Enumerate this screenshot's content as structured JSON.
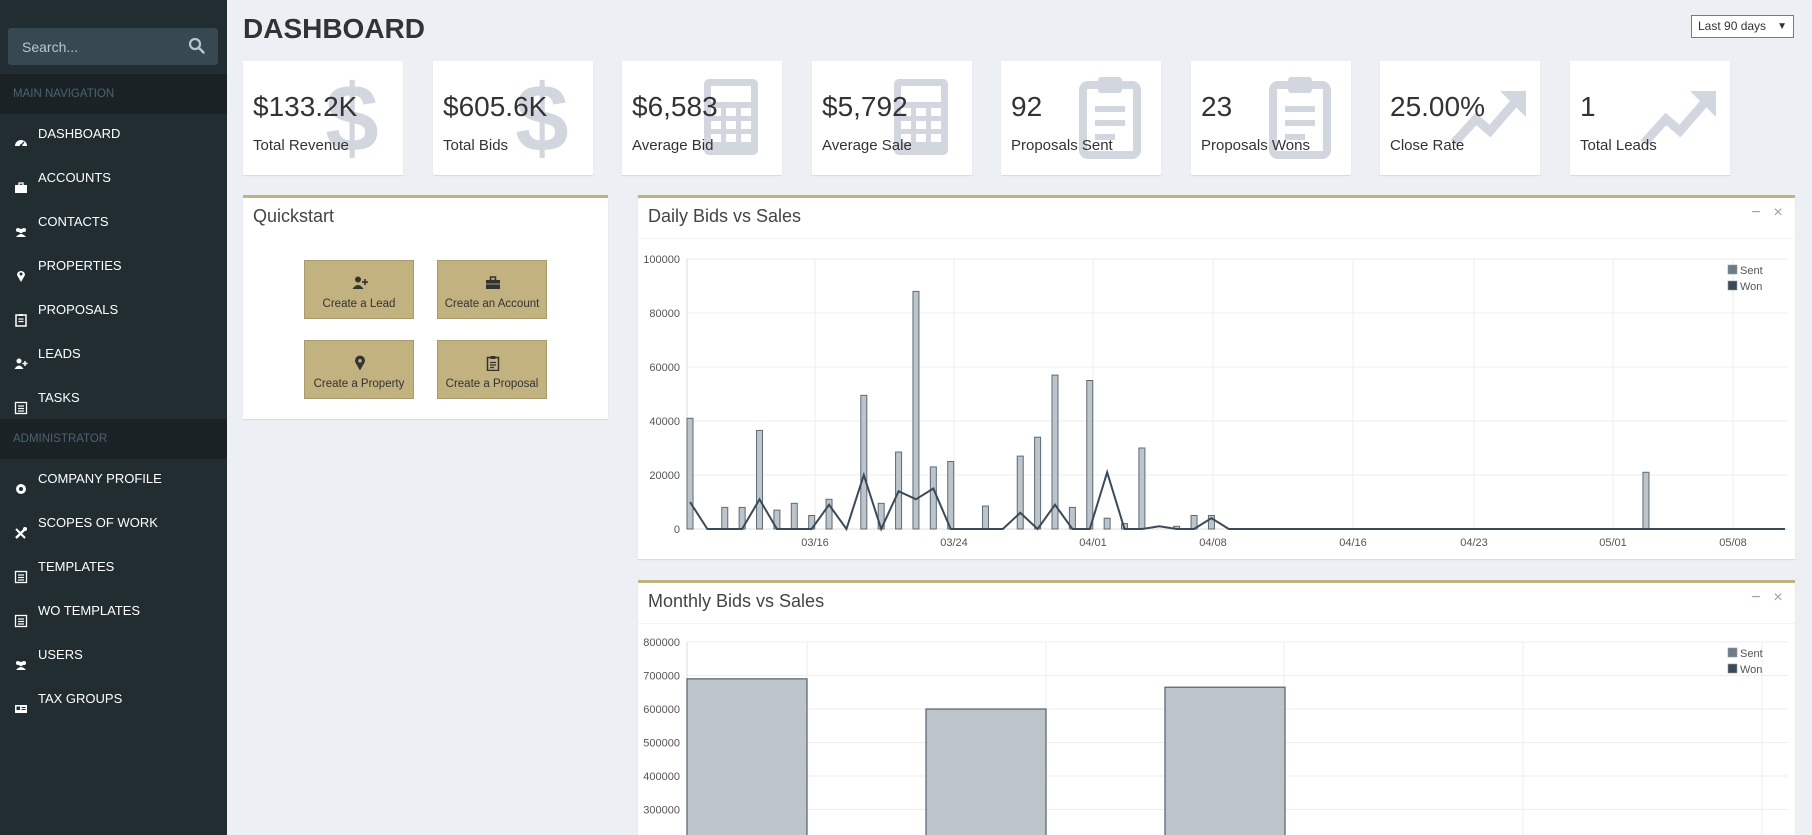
{
  "sidebar": {
    "search_placeholder": "Search...",
    "header_main": "MAIN NAVIGATION",
    "header_admin": "ADMINISTRATOR",
    "items": [
      {
        "label": "DASHBOARD",
        "icon": "dashboard-icon"
      },
      {
        "label": "ACCOUNTS",
        "icon": "briefcase-icon"
      },
      {
        "label": "CONTACTS",
        "icon": "users-icon"
      },
      {
        "label": "PROPERTIES",
        "icon": "map-marker-icon"
      },
      {
        "label": "PROPOSALS",
        "icon": "clipboard-icon"
      },
      {
        "label": "LEADS",
        "icon": "user-plus-icon"
      },
      {
        "label": "TASKS",
        "icon": "list-icon"
      },
      {
        "label": "COMPANY PROFILE",
        "icon": "cog-icon"
      },
      {
        "label": "SCOPES OF WORK",
        "icon": "tools-icon"
      },
      {
        "label": "TEMPLATES",
        "icon": "list-icon"
      },
      {
        "label": "WO TEMPLATES",
        "icon": "list-icon"
      },
      {
        "label": "USERS",
        "icon": "users-icon"
      },
      {
        "label": "TAX GROUPS",
        "icon": "id-card-icon"
      }
    ]
  },
  "header": {
    "title": "DASHBOARD",
    "range_select": "Last 90 days"
  },
  "kpis": [
    {
      "value": "$133.2K",
      "label": "Total Revenue",
      "icon": "dollar-icon"
    },
    {
      "value": "$605.6K",
      "label": "Total Bids",
      "icon": "dollar-icon"
    },
    {
      "value": "$6,583",
      "label": "Average Bid",
      "icon": "calculator-icon"
    },
    {
      "value": "$5,792",
      "label": "Average Sale",
      "icon": "calculator-icon"
    },
    {
      "value": "92",
      "label": "Proposals Sent",
      "icon": "clipboard-icon"
    },
    {
      "value": "23",
      "label": "Proposals Wons",
      "icon": "clipboard-icon"
    },
    {
      "value": "25.00%",
      "label": "Close Rate",
      "icon": "trend-up-icon"
    },
    {
      "value": "1",
      "label": "Total Leads",
      "icon": "trend-up-icon"
    }
  ],
  "quickstart": {
    "title": "Quickstart",
    "buttons": [
      {
        "label": "Create a Lead",
        "icon": "user-plus-icon"
      },
      {
        "label": "Create an Account",
        "icon": "briefcase-icon"
      },
      {
        "label": "Create a Property",
        "icon": "map-marker-icon"
      },
      {
        "label": "Create a Proposal",
        "icon": "clipboard-icon"
      }
    ]
  },
  "colors": {
    "sidebar_bg": "#222d32",
    "accent_gold": "#c2b280",
    "bar_fill": "#bdc5cb",
    "line_color": "#3b4a58"
  },
  "chart_data": [
    {
      "type": "bar",
      "title": "Daily Bids vs Sales",
      "ylim": [
        0,
        100000
      ],
      "yticks": [
        "0",
        "20000",
        "40000",
        "60000",
        "80000",
        "100000"
      ],
      "xticks": [
        "03/16",
        "03/24",
        "04/01",
        "04/08",
        "04/16",
        "04/23",
        "05/01",
        "05/08"
      ],
      "legend": {
        "position": "top-right",
        "entries": [
          "Sent",
          "Won"
        ]
      },
      "grid": true,
      "series": [
        {
          "name": "Sent",
          "type": "bar",
          "points": [
            [
              0,
              41000
            ],
            [
              2,
              8000
            ],
            [
              3,
              8000
            ],
            [
              4,
              36500
            ],
            [
              5,
              7000
            ],
            [
              6,
              9500
            ],
            [
              7,
              5000
            ],
            [
              8,
              11000
            ],
            [
              10,
              49500
            ],
            [
              11,
              9500
            ],
            [
              12,
              28500
            ],
            [
              13,
              88000
            ],
            [
              14,
              23000
            ],
            [
              15,
              25000
            ],
            [
              17,
              8500
            ],
            [
              19,
              27000
            ],
            [
              20,
              34000
            ],
            [
              21,
              57000
            ],
            [
              22,
              8000
            ],
            [
              23,
              55000
            ],
            [
              24,
              4000
            ],
            [
              25,
              2000
            ],
            [
              26,
              30000
            ],
            [
              28,
              1000
            ],
            [
              29,
              5000
            ],
            [
              30,
              5000
            ],
            [
              55,
              21000
            ]
          ]
        },
        {
          "name": "Won",
          "type": "line",
          "points": [
            [
              0,
              10000
            ],
            [
              1,
              0
            ],
            [
              2,
              0
            ],
            [
              3,
              0
            ],
            [
              4,
              11000
            ],
            [
              5,
              0
            ],
            [
              6,
              0
            ],
            [
              7,
              0
            ],
            [
              8,
              9000
            ],
            [
              9,
              0
            ],
            [
              10,
              20000
            ],
            [
              11,
              0
            ],
            [
              12,
              14000
            ],
            [
              13,
              11000
            ],
            [
              14,
              15000
            ],
            [
              15,
              0
            ],
            [
              16,
              0
            ],
            [
              17,
              0
            ],
            [
              18,
              0
            ],
            [
              19,
              6000
            ],
            [
              20,
              0
            ],
            [
              21,
              9000
            ],
            [
              22,
              0
            ],
            [
              23,
              0
            ],
            [
              24,
              21000
            ],
            [
              25,
              0
            ],
            [
              26,
              0
            ],
            [
              27,
              1000
            ],
            [
              28,
              0
            ],
            [
              29,
              0
            ],
            [
              30,
              4000
            ],
            [
              31,
              0
            ],
            [
              63,
              0
            ]
          ]
        }
      ],
      "x_domain": [
        0,
        63
      ]
    },
    {
      "type": "bar",
      "title": "Monthly Bids vs Sales",
      "ylim": [
        0,
        800000
      ],
      "yticks": [
        "300000",
        "400000",
        "500000",
        "600000",
        "700000",
        "800000"
      ],
      "legend": {
        "position": "top-right",
        "entries": [
          "Sent",
          "Won"
        ]
      },
      "grid": true,
      "series": [
        {
          "name": "Sent",
          "values": [
            690000,
            600000,
            665000
          ]
        }
      ]
    }
  ]
}
